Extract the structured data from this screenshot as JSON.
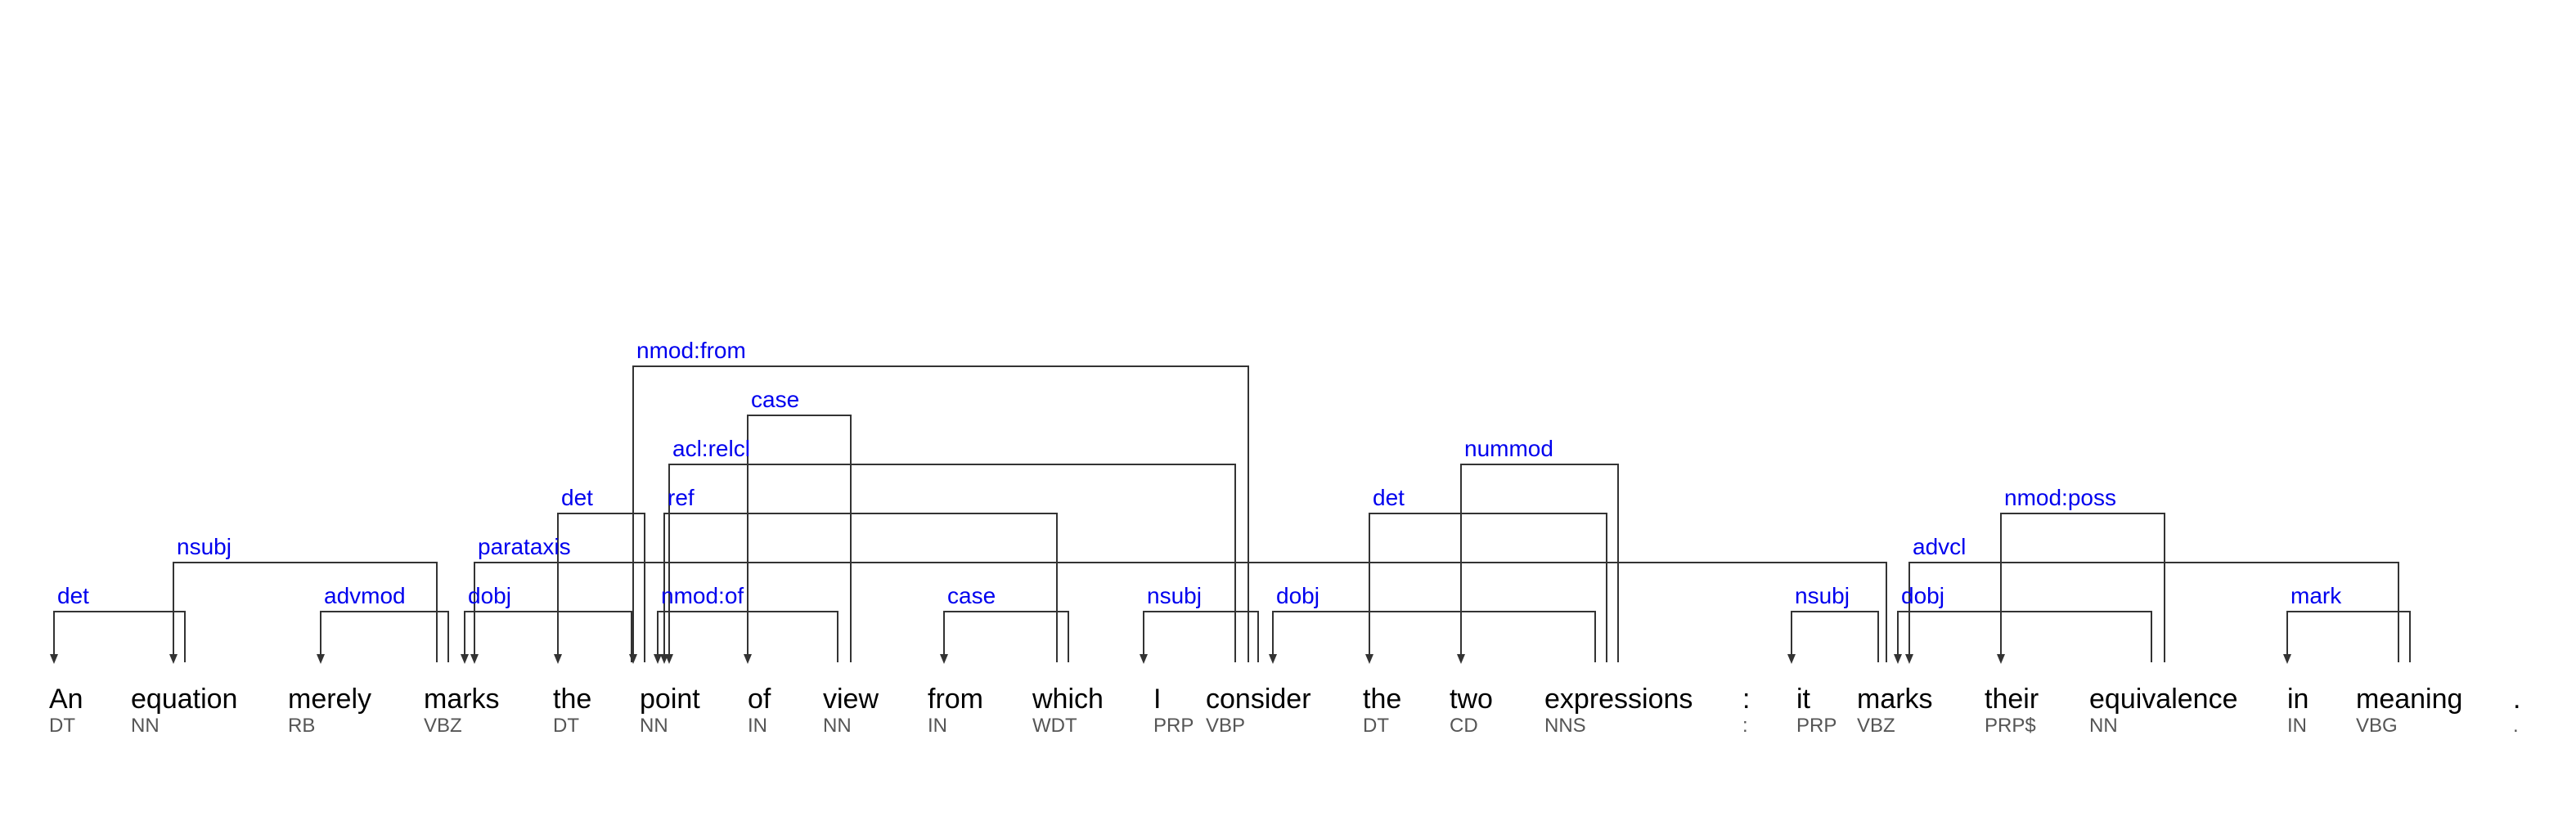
{
  "tokens": [
    {
      "word": "An",
      "tag": "DT"
    },
    {
      "word": "equation",
      "tag": "NN"
    },
    {
      "word": "merely",
      "tag": "RB"
    },
    {
      "word": "marks",
      "tag": "VBZ"
    },
    {
      "word": "the",
      "tag": "DT"
    },
    {
      "word": "point",
      "tag": "NN"
    },
    {
      "word": "of",
      "tag": "IN"
    },
    {
      "word": "view",
      "tag": "NN"
    },
    {
      "word": "from",
      "tag": "IN"
    },
    {
      "word": "which",
      "tag": "WDT"
    },
    {
      "word": "I",
      "tag": "PRP"
    },
    {
      "word": "consider",
      "tag": "VBP"
    },
    {
      "word": "the",
      "tag": "DT"
    },
    {
      "word": "two",
      "tag": "CD"
    },
    {
      "word": "expressions",
      "tag": "NNS"
    },
    {
      "word": ":",
      "tag": ":"
    },
    {
      "word": "it",
      "tag": "PRP"
    },
    {
      "word": "marks",
      "tag": "VBZ"
    },
    {
      "word": "their",
      "tag": "PRP$"
    },
    {
      "word": "equivalence",
      "tag": "NN"
    },
    {
      "word": "in",
      "tag": "IN"
    },
    {
      "word": "meaning",
      "tag": "VBG"
    },
    {
      "word": ".",
      "tag": "."
    }
  ],
  "dependencies": [
    {
      "label": "det",
      "head": 1,
      "dep": 0
    },
    {
      "label": "nsubj",
      "head": 3,
      "dep": 1
    },
    {
      "label": "advmod",
      "head": 3,
      "dep": 2
    },
    {
      "label": "dobj",
      "head": 3,
      "dep": 5
    },
    {
      "label": "parataxis",
      "head": 3,
      "dep": 17
    },
    {
      "label": "det",
      "head": 5,
      "dep": 4
    },
    {
      "label": "nmod:of",
      "head": 5,
      "dep": 7
    },
    {
      "label": "acl:relcl",
      "head": 5,
      "dep": 11
    },
    {
      "label": "ref",
      "head": 5,
      "dep": 9
    },
    {
      "label": "case",
      "head": 7,
      "dep": 6
    },
    {
      "label": "case",
      "head": 9,
      "dep": 8
    },
    {
      "label": "nsubj",
      "head": 11,
      "dep": 10
    },
    {
      "label": "dobj",
      "head": 11,
      "dep": 14
    },
    {
      "label": "nmod:from",
      "head": 11,
      "dep": 5
    },
    {
      "label": "det",
      "head": 14,
      "dep": 12
    },
    {
      "label": "nummod",
      "head": 14,
      "dep": 13
    },
    {
      "label": "nsubj",
      "head": 17,
      "dep": 16
    },
    {
      "label": "dobj",
      "head": 17,
      "dep": 19
    },
    {
      "label": "advcl",
      "head": 17,
      "dep": 21
    },
    {
      "label": "nmod:poss",
      "head": 19,
      "dep": 18
    },
    {
      "label": "mark",
      "head": 21,
      "dep": 20
    }
  ]
}
